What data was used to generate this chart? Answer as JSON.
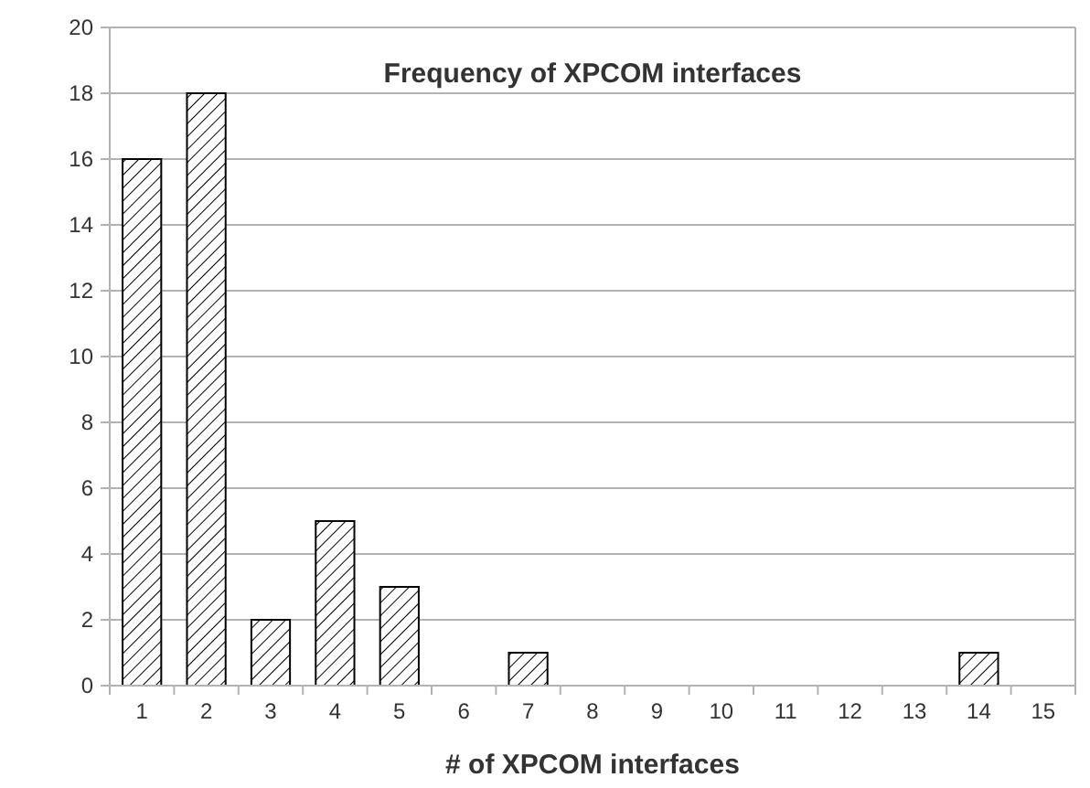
{
  "chart_data": {
    "type": "bar",
    "title": "Frequency of XPCOM interfaces",
    "xlabel": "# of XPCOM interfaces",
    "categories": [
      "1",
      "2",
      "3",
      "4",
      "5",
      "6",
      "7",
      "8",
      "9",
      "10",
      "11",
      "12",
      "13",
      "14",
      "15"
    ],
    "values": [
      16,
      18,
      2,
      5,
      3,
      0,
      1,
      0,
      0,
      0,
      0,
      0,
      0,
      1,
      0
    ],
    "color": "#000000",
    "ylim": [
      0,
      20
    ],
    "yticks": [
      0,
      2,
      4,
      6,
      8,
      10,
      12,
      14,
      16,
      18,
      20
    ],
    "grid": "y"
  }
}
